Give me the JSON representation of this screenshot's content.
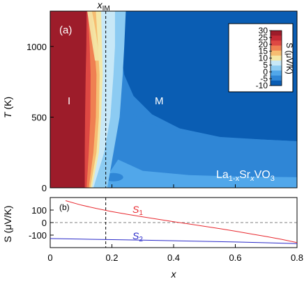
{
  "chart_data": [
    {
      "type": "heatmap",
      "panel_label": "(a)",
      "xlim": [
        0,
        0.8
      ],
      "ylim": [
        0,
        1250
      ],
      "ylabel_main": "T",
      "ylabel_unit": "(K)",
      "yticks": [
        "0",
        "500",
        "1000"
      ],
      "top_annotation": "x",
      "top_annotation_sub": "IM",
      "x_IM": 0.18,
      "region_labels": [
        "I",
        "M"
      ],
      "compound": {
        "p1": "La",
        "s1": "1-x",
        "p2": "Sr",
        "s2": "x",
        "p3": "VO",
        "s3": "3"
      },
      "colorbar": {
        "label": "S (μV/K)",
        "ticks": [
          "30",
          "25",
          "20",
          "15",
          "10",
          "5",
          "0",
          "-5",
          "-10"
        ],
        "range": [
          -10,
          30
        ],
        "colors": [
          "#0a5db3",
          "#2f86d6",
          "#51a7ea",
          "#8ccbf2",
          "#c8e8f7",
          "#f4e8a8",
          "#f6bd72",
          "#ef8052",
          "#de4843",
          "#c42a35",
          "#9d1c2a"
        ]
      },
      "contours": [
        {
          "level": 30,
          "boundary_x": [
            0.112,
            0.112,
            0.113,
            0.115,
            0.117,
            0.118
          ],
          "at_T": [
            0,
            250,
            500,
            800,
            1000,
            1250
          ]
        },
        {
          "level": 20,
          "boundary_x": [
            0.118,
            0.125,
            0.13,
            0.131,
            0.128,
            0.122
          ],
          "at_T": [
            0,
            250,
            500,
            800,
            1000,
            1250
          ]
        },
        {
          "level": 10,
          "boundary_x": [
            0.125,
            0.14,
            0.148,
            0.15,
            0.143,
            0.135
          ],
          "at_T": [
            0,
            250,
            500,
            800,
            1000,
            1250
          ]
        },
        {
          "level": 5,
          "boundary_x": [
            0.13,
            0.15,
            0.158,
            0.16,
            0.155,
            0.148
          ],
          "at_T": [
            0,
            250,
            500,
            800,
            1000,
            1250
          ]
        },
        {
          "level": 0,
          "boundary_x": [
            0.135,
            0.158,
            0.165,
            0.17,
            0.168,
            0.165
          ],
          "at_T": [
            0,
            250,
            500,
            800,
            1000,
            1250
          ]
        },
        {
          "level": -3,
          "boundary_x": [
            0.14,
            0.175,
            0.195,
            0.205,
            0.21,
            0.21
          ],
          "at_T": [
            0,
            250,
            500,
            800,
            1000,
            1250
          ]
        },
        {
          "level": -6,
          "boundary_x": [
            0.185,
            0.205,
            0.225,
            0.235,
            0.24,
            0.245
          ],
          "at_T": [
            0,
            250,
            500,
            800,
            1000,
            1250
          ]
        }
      ]
    },
    {
      "type": "line",
      "panel_label": "(b)",
      "xlabel": "x",
      "ylabel": "S (μV/K)",
      "xlim": [
        0,
        0.8
      ],
      "ylim": [
        -200,
        200
      ],
      "xticks": [
        "0",
        "0.2",
        "0.4",
        "0.6",
        "0.8"
      ],
      "yticks": [
        "-100",
        "0",
        "100"
      ],
      "series": [
        {
          "name": "S",
          "sub": "1",
          "color": "#e8282e",
          "x": [
            0.05,
            0.1,
            0.15,
            0.2,
            0.25,
            0.3,
            0.35,
            0.4,
            0.45,
            0.5,
            0.55,
            0.6,
            0.65,
            0.7,
            0.75,
            0.8
          ],
          "y": [
            175,
            140,
            112,
            88,
            66,
            46,
            26,
            7,
            -11,
            -30,
            -49,
            -69,
            -90,
            -111,
            -134,
            -160
          ]
        },
        {
          "name": "S",
          "sub": "2",
          "color": "#2828c8",
          "x": [
            0,
            0.1,
            0.2,
            0.3,
            0.4,
            0.5,
            0.6,
            0.7,
            0.8
          ],
          "y": [
            -128,
            -132,
            -136,
            -140,
            -145,
            -150,
            -155,
            -161,
            -168
          ]
        }
      ]
    }
  ]
}
